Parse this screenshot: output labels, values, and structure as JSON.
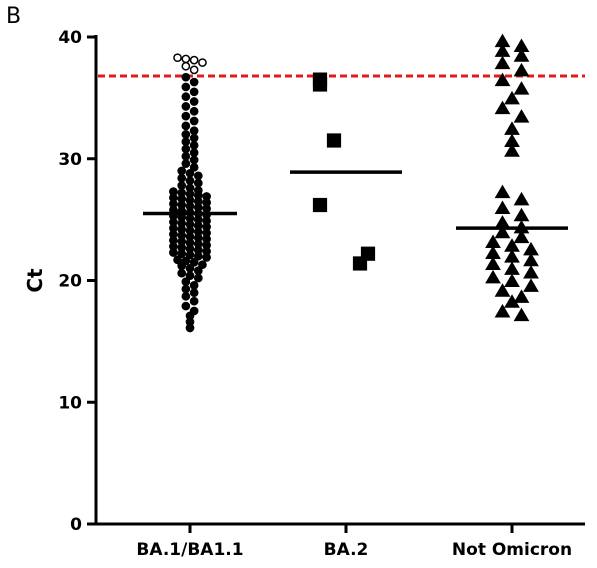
{
  "panel_label": "B",
  "chart_data": {
    "type": "scatter",
    "title": "",
    "xlabel": "",
    "ylabel": "Ct",
    "ylim": [
      0,
      40
    ],
    "yticks": [
      0,
      10,
      20,
      30,
      40
    ],
    "categories": [
      "BA.1/BA1.1",
      "BA.2",
      "Not Omicron"
    ],
    "threshold": {
      "value": 36.8,
      "color": "#e31a1c",
      "style": "dashed"
    },
    "medians": [
      25.5,
      28.9,
      24.3
    ],
    "groups": [
      {
        "category": "BA.1/BA1.1",
        "marker": "circle",
        "positive": [
          16.1,
          16.6,
          17.1,
          17.5,
          17.9,
          18.3,
          18.7,
          19.0,
          19.3,
          19.6,
          19.9,
          20.2,
          20.4,
          20.6,
          20.8,
          21.0,
          21.2,
          21.3,
          21.5,
          21.6,
          21.7,
          21.9,
          22.0,
          22.1,
          22.2,
          22.3,
          22.4,
          22.5,
          22.6,
          22.7,
          22.8,
          22.9,
          23.0,
          23.1,
          23.2,
          23.3,
          23.4,
          23.5,
          23.6,
          23.7,
          23.8,
          23.9,
          24.0,
          24.1,
          24.2,
          24.3,
          24.4,
          24.5,
          24.6,
          24.7,
          24.8,
          24.9,
          25.0,
          25.1,
          25.2,
          25.3,
          25.4,
          25.5,
          25.6,
          25.7,
          25.8,
          25.9,
          26.0,
          26.1,
          26.2,
          26.3,
          26.4,
          26.5,
          26.6,
          26.7,
          26.8,
          26.9,
          27.0,
          27.1,
          27.2,
          27.3,
          27.4,
          27.6,
          27.8,
          28.0,
          28.2,
          28.4,
          28.6,
          28.8,
          29.0,
          29.3,
          29.6,
          29.9,
          30.2,
          30.5,
          30.8,
          31.1,
          31.4,
          31.7,
          32.0,
          32.3,
          32.7,
          33.1,
          33.5,
          33.9,
          34.3,
          34.7,
          35.1,
          35.5,
          35.9,
          36.3,
          36.7
        ],
        "negative": [
          37.3,
          37.6,
          37.9,
          38.1,
          38.2,
          38.3
        ]
      },
      {
        "category": "BA.2",
        "marker": "square",
        "positive": [
          21.4,
          22.2,
          26.2,
          31.5,
          36.1
        ],
        "negative": [
          36.5
        ]
      },
      {
        "category": "Not Omicron",
        "marker": "triangle",
        "positive": [
          17.2,
          17.5,
          18.3,
          18.7,
          19.2,
          19.6,
          20.0,
          20.3,
          20.7,
          21.0,
          21.4,
          21.7,
          22.0,
          22.3,
          22.6,
          22.9,
          23.2,
          23.6,
          24.0,
          24.4,
          24.8,
          25.4,
          26.0,
          26.7,
          27.3,
          30.7,
          31.5,
          32.5,
          33.5,
          34.2,
          35.0,
          35.8,
          36.5
        ],
        "negative": [
          37.3,
          37.9,
          38.5,
          38.9,
          39.3,
          39.7
        ]
      }
    ]
  }
}
